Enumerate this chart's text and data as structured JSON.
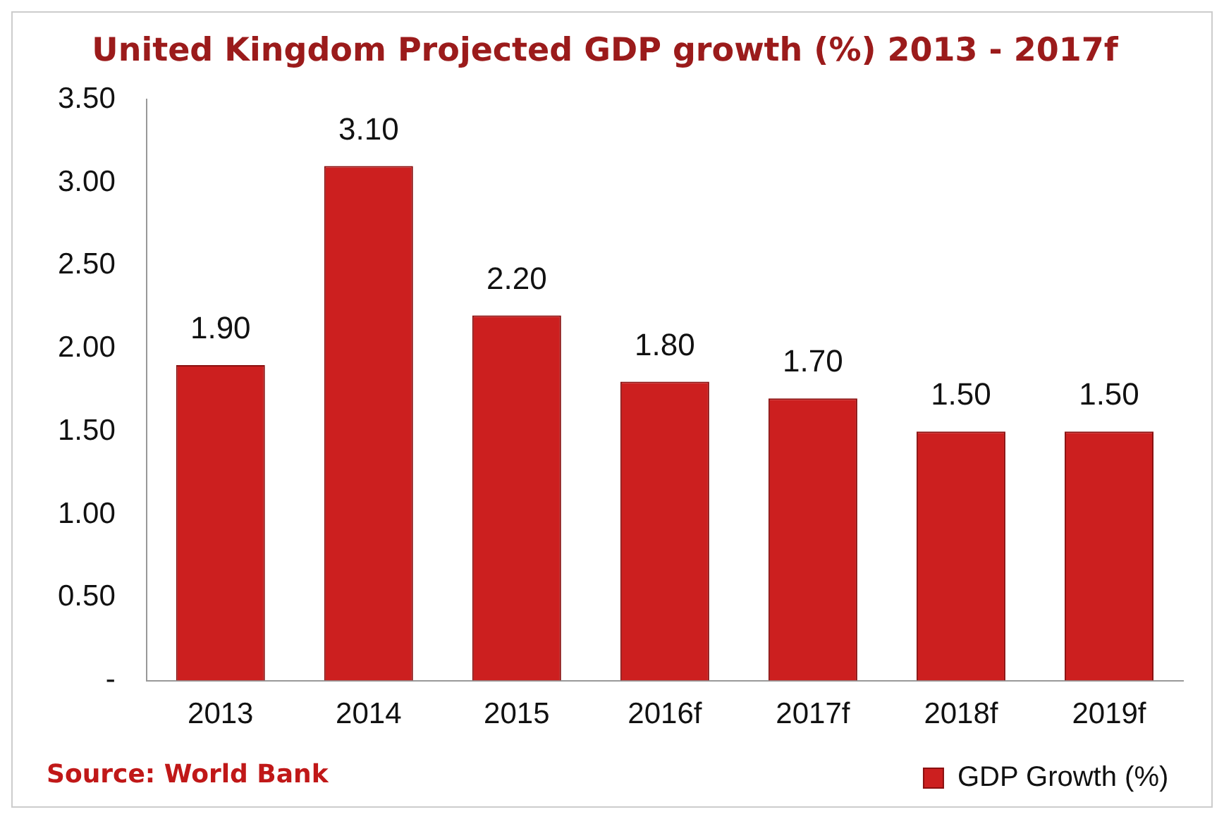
{
  "chart_data": {
    "type": "bar",
    "title": "United Kingdom Projected GDP growth (%) 2013 - 2017f",
    "categories": [
      "2013",
      "2014",
      "2015",
      "2016f",
      "2017f",
      "2018f",
      "2019f"
    ],
    "series": [
      {
        "name": "GDP Growth (%)",
        "color": "#cc1f1f",
        "values": [
          1.9,
          3.1,
          2.2,
          1.8,
          1.7,
          1.5,
          1.5
        ],
        "value_labels": [
          "1.90",
          "3.10",
          "2.20",
          "1.80",
          "1.70",
          "1.50",
          "1.50"
        ]
      }
    ],
    "ylim": [
      0,
      3.5
    ],
    "yticks": [
      {
        "value": 0,
        "label": "-"
      },
      {
        "value": 0.5,
        "label": "0.50"
      },
      {
        "value": 1,
        "label": "1.00"
      },
      {
        "value": 1.5,
        "label": "1.50"
      },
      {
        "value": 2,
        "label": "2.00"
      },
      {
        "value": 2.5,
        "label": "2.50"
      },
      {
        "value": 3,
        "label": "3.00"
      },
      {
        "value": 3.5,
        "label": "3.50"
      }
    ],
    "grid": false,
    "legend": "bottom right",
    "annotations": [
      "Source: World Bank"
    ]
  }
}
